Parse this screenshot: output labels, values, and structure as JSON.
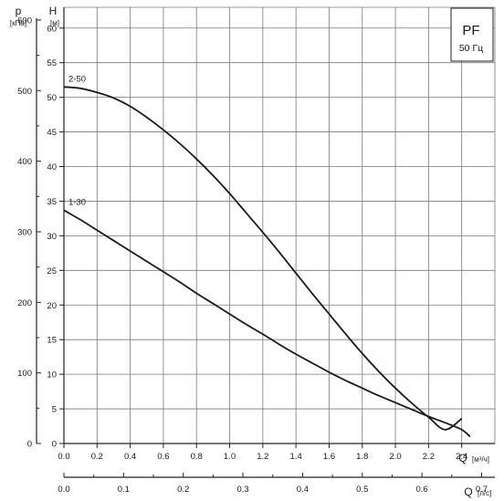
{
  "chart_data": {
    "type": "line",
    "badge": {
      "title": "PF",
      "subtitle": "50 Гц"
    },
    "ylabel_left": {
      "symbol": "p",
      "unit": "[кПа]"
    },
    "ylabel": {
      "symbol": "H",
      "unit": "[м]"
    },
    "xlabel": {
      "symbol": "Q",
      "unit": "[м³/ч]"
    },
    "xlabel2": {
      "symbol": "Q",
      "unit": "[л/с]"
    },
    "xlim": [
      0,
      2.6
    ],
    "ylim": [
      0,
      63
    ],
    "plim": [
      0,
      618
    ],
    "x_ticks": [
      0.0,
      0.2,
      0.4,
      0.6,
      0.8,
      1.0,
      1.2,
      1.4,
      1.6,
      1.8,
      2.0,
      2.2,
      2.4
    ],
    "x_tick_labels": [
      "0.0",
      "0.2",
      "0.4",
      "0.6",
      "0.8",
      "1.0",
      "1.2",
      "1.4",
      "1.6",
      "1.8",
      "2.0",
      "2.2",
      "2.4"
    ],
    "y_ticks": [
      0,
      5,
      10,
      15,
      20,
      25,
      30,
      35,
      40,
      45,
      50,
      55,
      60
    ],
    "y_tick_labels": [
      "0",
      "5",
      "10",
      "15",
      "20",
      "25",
      "30",
      "35",
      "40",
      "45",
      "50",
      "55",
      "60"
    ],
    "p_ticks": [
      0,
      100,
      200,
      300,
      400,
      500,
      600
    ],
    "p_tick_labels": [
      "0",
      "100",
      "200",
      "300",
      "400",
      "500",
      "600"
    ],
    "ls_ticks": [
      0.0,
      0.1,
      0.2,
      0.3,
      0.4,
      0.5,
      0.6,
      0.7
    ],
    "ls_tick_labels": [
      "0.0",
      "0.1",
      "0.2",
      "0.3",
      "0.4",
      "0.5",
      "0.6",
      "0.7"
    ],
    "grid": true,
    "series": [
      {
        "name": "2-50",
        "x": [
          0.0,
          0.1,
          0.2,
          0.3,
          0.4,
          0.5,
          0.6,
          0.7,
          0.8,
          0.9,
          1.0,
          1.1,
          1.2,
          1.3,
          1.4,
          1.5,
          1.6,
          1.7,
          1.8,
          1.9,
          2.0,
          2.1,
          2.2,
          2.3,
          2.4
        ],
        "y": [
          51.5,
          51.3,
          50.7,
          49.9,
          48.7,
          47.1,
          45.3,
          43.3,
          41.1,
          38.7,
          36.1,
          33.3,
          30.5,
          27.6,
          24.6,
          21.6,
          18.7,
          15.8,
          13.0,
          10.4,
          8.0,
          5.8,
          3.8,
          2.0,
          3.6
        ]
      },
      {
        "name": "1-30",
        "x": [
          0.0,
          0.1,
          0.2,
          0.3,
          0.4,
          0.5,
          0.6,
          0.7,
          0.8,
          0.9,
          1.0,
          1.1,
          1.2,
          1.3,
          1.4,
          1.5,
          1.6,
          1.7,
          1.8,
          1.9,
          2.0,
          2.1,
          2.2,
          2.3,
          2.4,
          2.45
        ],
        "y": [
          33.7,
          32.3,
          30.8,
          29.3,
          27.8,
          26.3,
          24.8,
          23.3,
          21.7,
          20.2,
          18.7,
          17.2,
          15.8,
          14.3,
          12.9,
          11.6,
          10.3,
          9.1,
          8.0,
          6.9,
          5.9,
          4.9,
          3.9,
          3.0,
          2.0,
          1.0
        ]
      }
    ]
  }
}
